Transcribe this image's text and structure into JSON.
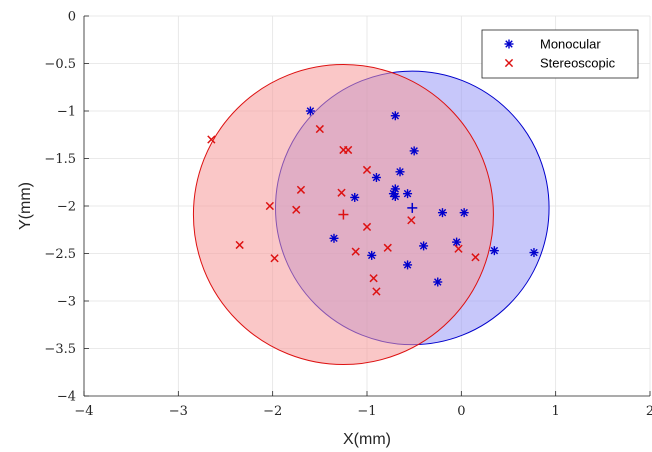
{
  "chart_data": {
    "type": "scatter",
    "xlabel": "X(mm)",
    "ylabel": "Y(mm)",
    "xlim": [
      -4,
      2
    ],
    "ylim": [
      -4,
      0
    ],
    "xticks": [
      -4,
      -3,
      -2,
      -1,
      0,
      1,
      2
    ],
    "xtick_labels": [
      "−4",
      "−3",
      "−2",
      "−1",
      "0",
      "1",
      "2"
    ],
    "yticks": [
      0,
      -0.5,
      -1,
      -1.5,
      -2,
      -2.5,
      -3,
      -3.5,
      -4
    ],
    "ytick_labels": [
      "0",
      "−0.5",
      "−1",
      "−1.5",
      "−2",
      "−2.5",
      "−3",
      "−3.5",
      "−4"
    ],
    "grid": true,
    "legend_position": "top-right",
    "series": [
      {
        "name": "Monocular",
        "marker": "asterisk",
        "color": "#0000cc",
        "fill": "#9999f5",
        "centroid": [
          -0.52,
          -2.02
        ],
        "circle": {
          "cx": -0.52,
          "cy": -2.02,
          "r": 1.45
        },
        "points": [
          [
            -1.6,
            -1.0
          ],
          [
            -0.7,
            -1.05
          ],
          [
            -0.5,
            -1.42
          ],
          [
            -0.65,
            -1.64
          ],
          [
            -0.9,
            -1.7
          ],
          [
            -0.7,
            -1.82
          ],
          [
            -0.72,
            -1.87
          ],
          [
            -0.57,
            -1.87
          ],
          [
            -0.7,
            -1.9
          ],
          [
            -1.13,
            -1.91
          ],
          [
            -0.2,
            -2.07
          ],
          [
            0.03,
            -2.07
          ],
          [
            -1.35,
            -2.34
          ],
          [
            -0.4,
            -2.42
          ],
          [
            -0.05,
            -2.38
          ],
          [
            -0.95,
            -2.52
          ],
          [
            -0.57,
            -2.62
          ],
          [
            0.35,
            -2.47
          ],
          [
            0.77,
            -2.49
          ],
          [
            -0.25,
            -2.8
          ]
        ]
      },
      {
        "name": "Stereoscopic",
        "marker": "x",
        "color": "#dd1111",
        "fill": "#f59999",
        "centroid": [
          -1.25,
          -2.09
        ],
        "circle": {
          "cx": -1.25,
          "cy": -2.09,
          "r": 1.59
        },
        "points": [
          [
            -2.65,
            -1.3
          ],
          [
            -1.5,
            -1.19
          ],
          [
            -1.25,
            -1.41
          ],
          [
            -1.2,
            -1.41
          ],
          [
            -1.0,
            -1.62
          ],
          [
            -1.7,
            -1.83
          ],
          [
            -1.27,
            -1.86
          ],
          [
            -2.03,
            -2.0
          ],
          [
            -1.75,
            -2.04
          ],
          [
            -1.0,
            -2.22
          ],
          [
            -0.53,
            -2.15
          ],
          [
            -2.35,
            -2.41
          ],
          [
            -1.98,
            -2.55
          ],
          [
            -1.12,
            -2.48
          ],
          [
            -0.78,
            -2.44
          ],
          [
            -0.03,
            -2.45
          ],
          [
            0.15,
            -2.54
          ],
          [
            -0.93,
            -2.76
          ],
          [
            -0.9,
            -2.9
          ]
        ]
      }
    ]
  }
}
